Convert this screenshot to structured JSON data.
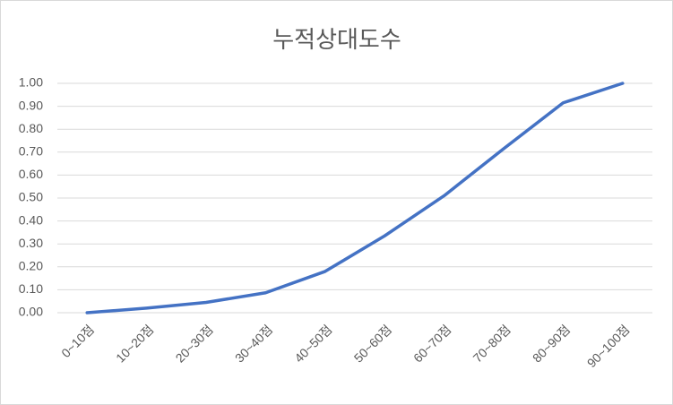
{
  "chart_data": {
    "type": "line",
    "title": "누적상대도수",
    "categories": [
      "0~10점",
      "10~20점",
      "20~30점",
      "30~40점",
      "40~50점",
      "50~60점",
      "60~70점",
      "70~80점",
      "80~90점",
      "90~100점"
    ],
    "series": [
      {
        "name": "누적상대도수",
        "color": "#4472c4",
        "values": [
          0,
          0.02,
          0.045,
          0.087,
          0.18,
          0.335,
          0.51,
          0.715,
          0.915,
          1.0
        ]
      }
    ],
    "ylim": [
      0,
      1
    ],
    "yticks": [
      {
        "value": 0,
        "label": "0.00"
      },
      {
        "value": 0.1,
        "label": "0.10"
      },
      {
        "value": 0.2,
        "label": "0.20"
      },
      {
        "value": 0.3,
        "label": "0.30"
      },
      {
        "value": 0.4,
        "label": "0.40"
      },
      {
        "value": 0.5,
        "label": "0.50"
      },
      {
        "value": 0.6,
        "label": "0.60"
      },
      {
        "value": 0.7,
        "label": "0.70"
      },
      {
        "value": 0.8,
        "label": "0.80"
      },
      {
        "value": 0.9,
        "label": "0.90"
      },
      {
        "value": 1,
        "label": "1.00"
      }
    ],
    "grid": true
  }
}
